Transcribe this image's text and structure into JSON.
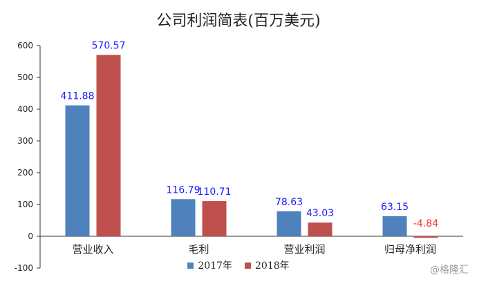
{
  "chart_data": {
    "type": "bar",
    "title": "公司利润简表(百万美元)",
    "categories": [
      "营业收入",
      "毛利",
      "营业利润",
      "归母净利润"
    ],
    "series": [
      {
        "name": "2017年",
        "color": "#4F81BD",
        "values": [
          411.88,
          116.79,
          78.63,
          63.15
        ]
      },
      {
        "name": "2018年",
        "color": "#C0504D",
        "values": [
          570.57,
          110.71,
          43.03,
          -4.84
        ]
      }
    ],
    "data_labels": [
      [
        "411.88",
        "116.79",
        "78.63",
        "63.15"
      ],
      [
        "570.57",
        "110.71",
        "43.03",
        "-4.84"
      ]
    ],
    "data_label_colors": {
      "positive": "#1a1aff",
      "negative": "#ff2a2a"
    },
    "ylim": [
      -100,
      600
    ],
    "yticks": [
      -100,
      0,
      100,
      200,
      300,
      400,
      500,
      600
    ],
    "xlabel": "",
    "ylabel": "",
    "grid": false,
    "legend_position": "bottom"
  },
  "watermark": "@格隆汇"
}
